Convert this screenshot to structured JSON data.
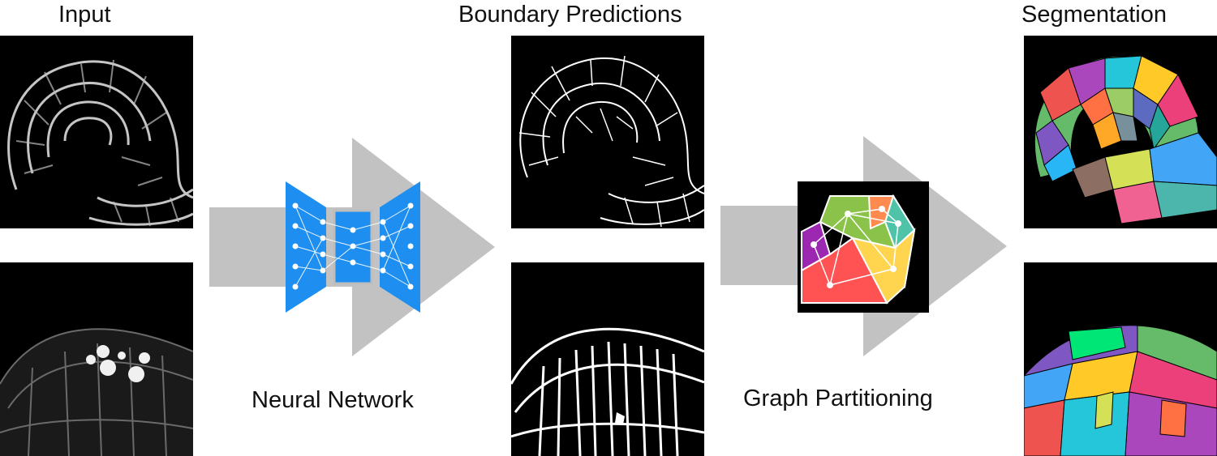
{
  "titles": {
    "input": "Input",
    "boundary": "Boundary Predictions",
    "segmentation": "Segmentation"
  },
  "captions": {
    "neural_network": "Neural Network",
    "graph_partitioning": "Graph Partitioning"
  },
  "colors": {
    "arrow": "#c2c2c2",
    "network_blue": "#1e8ef0",
    "panel_bg": "#000000",
    "graph_regions": [
      "#8bc34a",
      "#ff8a50",
      "#4fc3a8",
      "#9c27b0",
      "#ff5252",
      "#ffd54f"
    ]
  },
  "icons": [
    "neural-network-icon",
    "graph-partition-icon"
  ]
}
